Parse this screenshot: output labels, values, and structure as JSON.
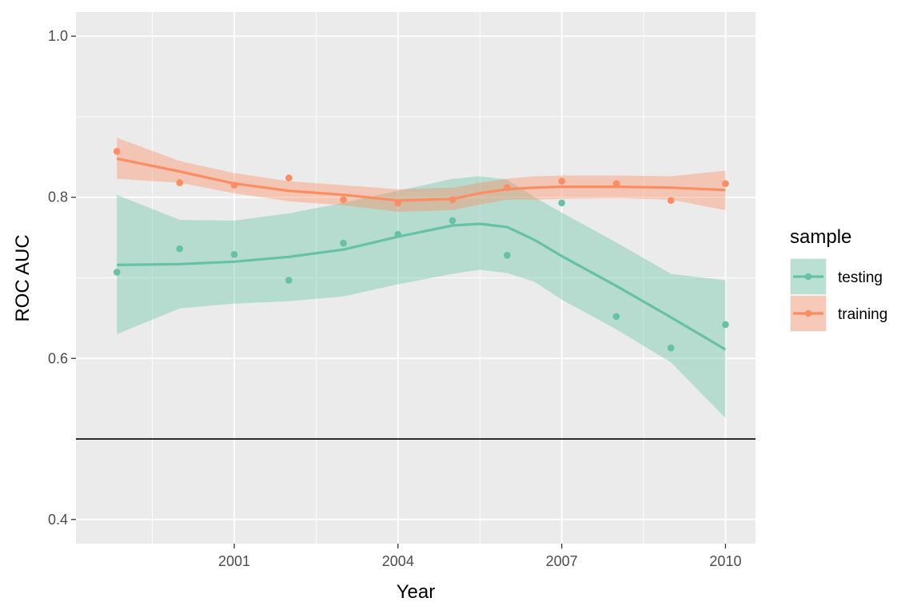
{
  "chart_data": {
    "type": "scatter",
    "title": "",
    "xlabel": "Year",
    "ylabel": "ROC AUC",
    "xlim": [
      1998.1,
      2010.55
    ],
    "ylim": [
      0.37,
      1.03
    ],
    "x_ticks": [
      2001,
      2004,
      2007,
      2010
    ],
    "y_ticks": [
      0.4,
      0.6,
      0.8,
      1.0
    ],
    "y_tick_labels": [
      "0.4",
      "0.6",
      "0.8",
      "1.0"
    ],
    "x_tick_labels": [
      "2001",
      "2004",
      "2007",
      "2010"
    ],
    "hline": 0.5,
    "grid": true,
    "legend": {
      "title": "sample",
      "position": "right"
    },
    "series": [
      {
        "name": "testing",
        "color": "#66c2a5",
        "points": {
          "x": [
            1998.85,
            2000,
            2001,
            2002,
            2003,
            2004,
            2005,
            2006,
            2007,
            2008,
            2009,
            2010
          ],
          "y": [
            0.707,
            0.736,
            0.729,
            0.697,
            0.743,
            0.754,
            0.771,
            0.728,
            0.793,
            0.652,
            0.613,
            0.642
          ]
        },
        "smooth": {
          "x": [
            1998.85,
            2000,
            2001,
            2002,
            2003,
            2004,
            2005,
            2005.5,
            2006,
            2006.5,
            2007,
            2008,
            2009,
            2010
          ],
          "y": [
            0.716,
            0.717,
            0.72,
            0.726,
            0.735,
            0.751,
            0.765,
            0.767,
            0.763,
            0.747,
            0.727,
            0.69,
            0.651,
            0.611
          ]
        },
        "ci_upper": [
          0.803,
          0.772,
          0.771,
          0.78,
          0.793,
          0.808,
          0.823,
          0.826,
          0.822,
          0.8,
          0.781,
          0.744,
          0.705,
          0.697
        ],
        "ci_lower": [
          0.63,
          0.662,
          0.668,
          0.671,
          0.677,
          0.692,
          0.705,
          0.71,
          0.706,
          0.695,
          0.673,
          0.636,
          0.595,
          0.526
        ]
      },
      {
        "name": "training",
        "color": "#fc8d62",
        "points": {
          "x": [
            1998.85,
            2000,
            2001,
            2002,
            2003,
            2004,
            2005,
            2006,
            2007,
            2008,
            2009,
            2010
          ],
          "y": [
            0.857,
            0.818,
            0.815,
            0.824,
            0.797,
            0.793,
            0.797,
            0.812,
            0.82,
            0.817,
            0.796,
            0.817
          ]
        },
        "smooth": {
          "x": [
            1998.85,
            2000,
            2001,
            2002,
            2003,
            2004,
            2005,
            2005.5,
            2006,
            2006.5,
            2007,
            2008,
            2009,
            2010
          ],
          "y": [
            0.848,
            0.832,
            0.817,
            0.808,
            0.803,
            0.796,
            0.798,
            0.805,
            0.81,
            0.812,
            0.813,
            0.813,
            0.812,
            0.809
          ]
        },
        "ci_upper": [
          0.874,
          0.845,
          0.83,
          0.82,
          0.815,
          0.81,
          0.812,
          0.818,
          0.823,
          0.826,
          0.827,
          0.827,
          0.826,
          0.833
        ],
        "ci_lower": [
          0.823,
          0.818,
          0.805,
          0.795,
          0.79,
          0.782,
          0.784,
          0.791,
          0.797,
          0.797,
          0.798,
          0.799,
          0.797,
          0.784
        ]
      }
    ]
  }
}
